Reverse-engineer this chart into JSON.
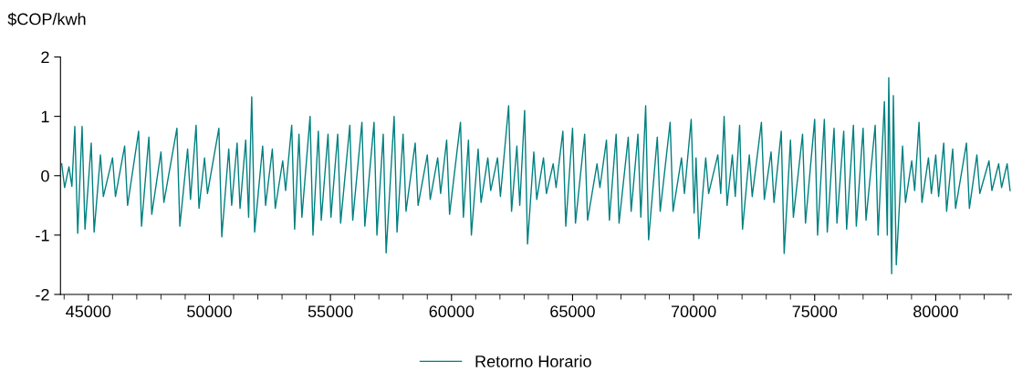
{
  "chart_data": {
    "type": "line",
    "ylabel": "$COP/kwh",
    "xlim": [
      43850,
      83150
    ],
    "xticks": [
      45000,
      50000,
      55000,
      60000,
      65000,
      70000,
      75000,
      80000
    ],
    "ylim": [
      -2,
      2
    ],
    "yticks": [
      -2,
      -1,
      0,
      1,
      2
    ],
    "grid": false,
    "legend": "bottom",
    "marker": "none",
    "line_style": "solid",
    "series": [
      {
        "name": "Retorno Horario",
        "color": "#008080",
        "x": [
          43900,
          44020,
          44200,
          44320,
          44441,
          44561,
          44742,
          44862,
          45119,
          45239,
          45500,
          45620,
          46000,
          46120,
          46500,
          46620,
          47077,
          47197,
          47500,
          47620,
          48000,
          48120,
          48659,
          48779,
          49100,
          49220,
          49450,
          49570,
          49800,
          49920,
          50392,
          50512,
          50800,
          50920,
          51145,
          51265,
          51500,
          51620,
          51748,
          51868,
          52200,
          52320,
          52600,
          52720,
          53028,
          53148,
          53400,
          53520,
          53700,
          53820,
          54158,
          54278,
          54500,
          54620,
          54900,
          55020,
          55300,
          55420,
          55800,
          55920,
          56300,
          56420,
          56800,
          56920,
          57180,
          57300,
          57630,
          57750,
          58000,
          58120,
          58500,
          58620,
          59000,
          59120,
          59430,
          59550,
          59800,
          59920,
          60370,
          60490,
          60700,
          60820,
          61100,
          61220,
          61500,
          61620,
          61900,
          62020,
          62360,
          62480,
          62700,
          62820,
          63020,
          63140,
          63400,
          63520,
          63800,
          63920,
          64200,
          64320,
          64600,
          64720,
          65000,
          65120,
          65500,
          65620,
          66010,
          66130,
          66400,
          66520,
          66800,
          66920,
          67300,
          67420,
          67700,
          67820,
          68020,
          68140,
          68500,
          68620,
          69030,
          69150,
          69500,
          69620,
          69900,
          70020,
          70100,
          70220,
          70500,
          70620,
          71000,
          71120,
          71260,
          71380,
          71600,
          71720,
          71900,
          72020,
          72300,
          72420,
          72800,
          72920,
          73200,
          73320,
          73620,
          73740,
          74000,
          74120,
          74500,
          74620,
          75000,
          75120,
          75400,
          75520,
          75800,
          75920,
          76200,
          76320,
          76600,
          76720,
          77000,
          77120,
          77500,
          77620,
          77880,
          78000,
          78060,
          78180,
          78250,
          78370,
          78630,
          78750,
          79010,
          79130,
          79310,
          79430,
          79700,
          79820,
          80000,
          80120,
          80330,
          80450,
          80700,
          80820,
          81270,
          81390,
          81700,
          81820,
          82200,
          82320,
          82600,
          82720,
          82950,
          83070
        ],
        "values": [
          0.2,
          -0.2,
          0.15,
          -0.18,
          0.83,
          -0.97,
          0.83,
          -0.9,
          0.55,
          -0.95,
          0.35,
          -0.35,
          0.3,
          -0.35,
          0.5,
          -0.5,
          0.75,
          -0.85,
          0.65,
          -0.65,
          0.4,
          -0.45,
          0.8,
          -0.85,
          0.45,
          -0.4,
          0.85,
          -0.55,
          0.3,
          -0.3,
          0.8,
          -1.03,
          0.45,
          -0.5,
          0.55,
          -0.55,
          0.6,
          -0.7,
          1.33,
          -0.95,
          0.5,
          -0.5,
          0.45,
          -0.55,
          0.25,
          -0.25,
          0.85,
          -0.9,
          0.7,
          -0.7,
          1.0,
          -1.0,
          0.75,
          -0.75,
          0.7,
          -0.7,
          0.7,
          -0.8,
          0.85,
          -0.75,
          0.9,
          -0.85,
          0.9,
          -1.0,
          0.7,
          -1.3,
          1.0,
          -0.95,
          0.7,
          -0.6,
          0.55,
          -0.5,
          0.35,
          -0.4,
          0.3,
          -0.3,
          0.6,
          -0.65,
          0.9,
          -0.7,
          0.6,
          -1.0,
          0.45,
          -0.45,
          0.3,
          -0.25,
          0.3,
          -0.35,
          1.18,
          -0.6,
          0.5,
          -0.5,
          1.1,
          -1.15,
          0.4,
          -0.4,
          0.3,
          -0.3,
          0.2,
          -0.2,
          0.75,
          -0.85,
          0.8,
          -0.8,
          0.7,
          -0.75,
          0.2,
          -0.2,
          0.6,
          -0.75,
          0.7,
          -0.8,
          0.65,
          -0.6,
          0.7,
          -0.7,
          1.18,
          -1.08,
          0.65,
          -0.6,
          0.9,
          -0.6,
          0.3,
          -0.3,
          0.95,
          -0.63,
          0.3,
          -1.06,
          0.3,
          -0.3,
          0.35,
          -0.3,
          1.0,
          -0.5,
          0.35,
          -0.35,
          0.85,
          -0.9,
          0.35,
          -0.35,
          0.9,
          -0.4,
          0.4,
          -0.45,
          0.75,
          -1.31,
          0.6,
          -0.7,
          0.7,
          -0.8,
          0.95,
          -1.0,
          0.95,
          -0.95,
          0.8,
          -0.8,
          0.75,
          -0.9,
          0.85,
          -0.85,
          0.8,
          -0.75,
          0.85,
          -1.0,
          1.25,
          -1.0,
          1.65,
          -1.65,
          1.35,
          -1.5,
          0.5,
          -0.45,
          0.25,
          -0.25,
          0.9,
          -0.45,
          0.3,
          -0.3,
          0.35,
          -0.35,
          0.55,
          -0.6,
          0.45,
          -0.55,
          0.55,
          -0.55,
          0.35,
          -0.3,
          0.25,
          -0.25,
          0.2,
          -0.2,
          0.2,
          -0.25
        ]
      }
    ]
  }
}
